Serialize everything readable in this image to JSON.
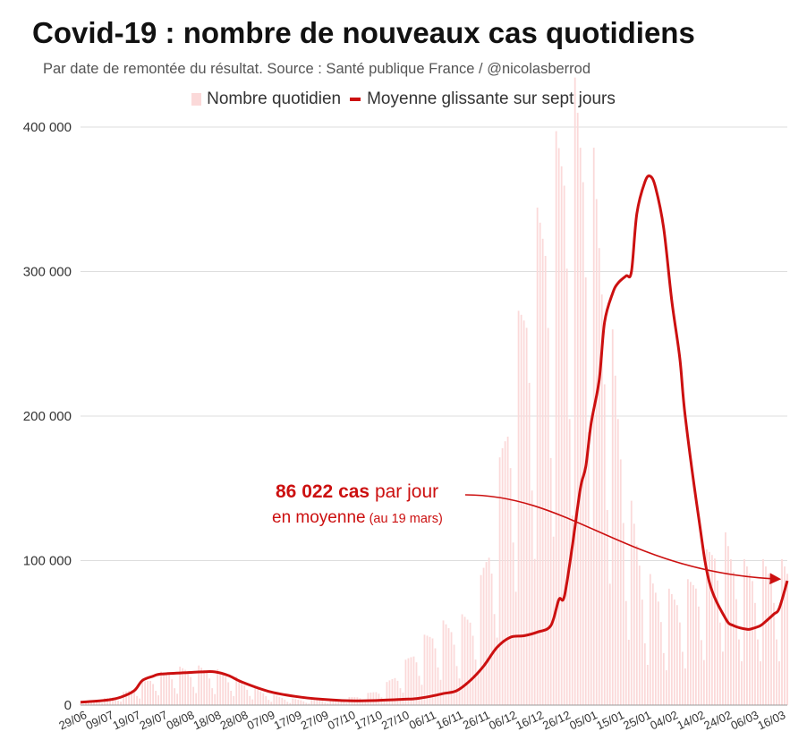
{
  "title": "Covid-19 : nombre de nouveaux cas quotidiens",
  "subtitle": "Par date de remontée du résultat. Source : Santé publique France / @nicolasberrod",
  "colors": {
    "bars": "#fbd9d9",
    "line": "#cc1010",
    "grid": "#dddddd"
  },
  "chart_data": {
    "type": "bar",
    "legend": {
      "bars_label": "Nombre quotidien",
      "line_label": "Moyenne glissante sur sept jours",
      "placement": "top-center"
    },
    "start_date": "2020-06-29",
    "end_date": "2021-03-19",
    "x_tick_labels": [
      "29/06",
      "09/07",
      "19/07",
      "29/07",
      "08/08",
      "18/08",
      "28/08",
      "07/09",
      "17/09",
      "27/09",
      "07/10",
      "17/10",
      "27/10",
      "06/11",
      "16/11",
      "26/11",
      "06/12",
      "16/12",
      "26/12",
      "05/01",
      "15/01",
      "25/01",
      "04/02",
      "14/02",
      "24/02",
      "06/03",
      "16/03"
    ],
    "y_tick_values": [
      0,
      100000,
      200000,
      300000,
      400000
    ],
    "y_tick_labels": [
      "0",
      "100 000",
      "200 000",
      "300 000",
      "400 000"
    ],
    "ylim": [
      0,
      400000
    ],
    "grid": true,
    "series": [
      {
        "name": "Moyenne glissante sur sept jours",
        "type": "line",
        "x": [
          "29/06",
          "09/07",
          "14/07",
          "19/07",
          "22/07",
          "26/07",
          "29/07",
          "08/08",
          "13/08",
          "18/08",
          "23/08",
          "28/08",
          "07/09",
          "17/09",
          "27/09",
          "07/10",
          "17/10",
          "27/10",
          "01/11",
          "06/11",
          "11/11",
          "16/11",
          "21/11",
          "26/11",
          "01/12",
          "06/12",
          "11/12",
          "16/12",
          "21/12",
          "24/12",
          "26/12",
          "29/12",
          "01/01",
          "03/01",
          "05/01",
          "08/01",
          "10/01",
          "13/01",
          "15/01",
          "18/01",
          "20/01",
          "22/01",
          "25/01",
          "27/01",
          "29/01",
          "01/02",
          "04/02",
          "07/02",
          "09/02",
          "14/02",
          "18/02",
          "24/02",
          "27/02",
          "04/03",
          "06/03",
          "09/03",
          "11/03",
          "14/03",
          "16/03",
          "19/03"
        ],
        "y": [
          2000,
          3500,
          5500,
          10000,
          17000,
          20000,
          21500,
          22500,
          23000,
          23000,
          20500,
          16000,
          9500,
          6000,
          4000,
          3000,
          3200,
          4000,
          4500,
          6000,
          8000,
          10000,
          17000,
          27000,
          40000,
          47000,
          48000,
          50500,
          55000,
          73000,
          75000,
          110000,
          150000,
          165000,
          195000,
          225000,
          265000,
          285000,
          292000,
          297000,
          300000,
          340000,
          362000,
          366000,
          358000,
          330000,
          280000,
          240000,
          200000,
          130000,
          85000,
          60000,
          55000,
          52500,
          53000,
          55000,
          58000,
          63000,
          67000,
          86022
        ]
      },
      {
        "name": "Nombre quotidien",
        "type": "bar",
        "note": "bars approximated with weekly cycle (low counts on Sundays/Mondays), peaks near 440000 in late January",
        "weekly_peak_y": [
          2500,
          4000,
          7000,
          14000,
          22000,
          26000,
          28000,
          26000,
          22000,
          14000,
          8000,
          5000,
          3500,
          4000,
          5000,
          7000,
          12000,
          26000,
          45000,
          58000,
          60000,
          70000,
          140000,
          250000,
          330000,
          380000,
          440000,
          420000,
          300000,
          160000,
          95000,
          80000,
          82000,
          100000,
          127000,
          101000
        ]
      }
    ],
    "annotation": {
      "value_text": "86 022 cas",
      "text_a": " par jour",
      "text_b": "en moyenne",
      "text_c": " (au 19 mars)"
    }
  }
}
